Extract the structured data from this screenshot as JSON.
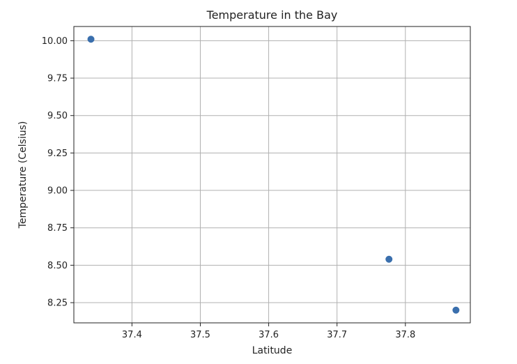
{
  "chart_data": {
    "type": "scatter",
    "title": "Temperature in the Bay",
    "xlabel": "Latitude",
    "ylabel": "Temperature (Celsius)",
    "xlim": [
      37.315,
      37.895
    ],
    "ylim": [
      8.115,
      10.095
    ],
    "xticks": [
      37.4,
      37.5,
      37.6,
      37.7,
      37.8
    ],
    "xtick_labels": [
      "37.4",
      "37.5",
      "37.6",
      "37.7",
      "37.8"
    ],
    "yticks": [
      8.25,
      8.5,
      8.75,
      9.0,
      9.25,
      9.5,
      9.75,
      10.0
    ],
    "ytick_labels": [
      "8.25",
      "8.50",
      "8.75",
      "9.00",
      "9.25",
      "9.50",
      "9.75",
      "10.00"
    ],
    "grid": true,
    "points": [
      {
        "x": 37.34,
        "y": 10.01
      },
      {
        "x": 37.776,
        "y": 8.54
      },
      {
        "x": 37.874,
        "y": 8.2
      }
    ],
    "colors": {
      "marker": "#3a6fad",
      "grid": "#b0b0b0",
      "axis": "#222222"
    }
  }
}
